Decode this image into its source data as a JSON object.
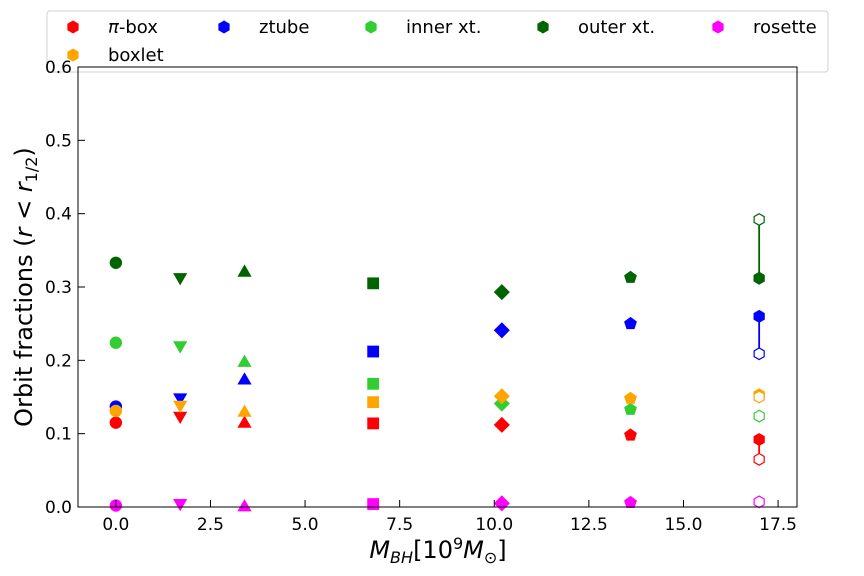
{
  "chart_data": {
    "type": "scatter",
    "xlabel": "M_BH[10^9 M_⊙]",
    "ylabel": "Orbit fractions (r < r_1/2)",
    "xlim": [
      -1.0,
      18.0
    ],
    "ylim": [
      0.0,
      0.6
    ],
    "xticks": [
      0.0,
      2.5,
      5.0,
      7.5,
      10.0,
      12.5,
      15.0,
      17.5
    ],
    "xtick_labels": [
      "0.0",
      "2.5",
      "5.0",
      "7.5",
      "10.0",
      "12.5",
      "15.0",
      "17.5"
    ],
    "yticks": [
      0.0,
      0.1,
      0.2,
      0.3,
      0.4,
      0.5,
      0.6
    ],
    "ytick_labels": [
      "0.0",
      "0.1",
      "0.2",
      "0.3",
      "0.4",
      "0.5",
      "0.6"
    ],
    "x": [
      0.0,
      1.7,
      3.4,
      6.8,
      10.2,
      13.6,
      17.0
    ],
    "markers": [
      "circle",
      "triangle-down",
      "triangle-up",
      "square",
      "diamond",
      "pentagon",
      "hexagon"
    ],
    "grid": false,
    "legend_location": "top",
    "series": [
      {
        "name": "π-box",
        "color": "#ff0000",
        "values": [
          0.115,
          0.123,
          0.115,
          0.114,
          0.112,
          0.098,
          0.092
        ],
        "open_value": 0.065
      },
      {
        "name": "ztube",
        "color": "#0000ff",
        "values": [
          0.137,
          0.148,
          0.174,
          0.212,
          0.241,
          0.25,
          0.26
        ],
        "open_value": 0.209
      },
      {
        "name": "inner xt.",
        "color": "#32cd32",
        "values": [
          0.224,
          0.219,
          0.198,
          0.168,
          0.141,
          0.133,
          null
        ],
        "open_value": 0.124
      },
      {
        "name": "outer xt.",
        "color": "#006400",
        "values": [
          0.333,
          0.312,
          0.321,
          0.305,
          0.293,
          0.313,
          0.312
        ],
        "open_value": 0.392
      },
      {
        "name": "rosette",
        "color": "#ff00ff",
        "values": [
          0.002,
          0.004,
          0.001,
          0.004,
          0.005,
          0.006,
          null
        ],
        "open_value": 0.007
      },
      {
        "name": "boxlet",
        "color": "#ffa500",
        "values": [
          0.131,
          0.138,
          0.13,
          0.143,
          0.151,
          0.148,
          0.153
        ],
        "open_value": 0.15
      }
    ]
  }
}
